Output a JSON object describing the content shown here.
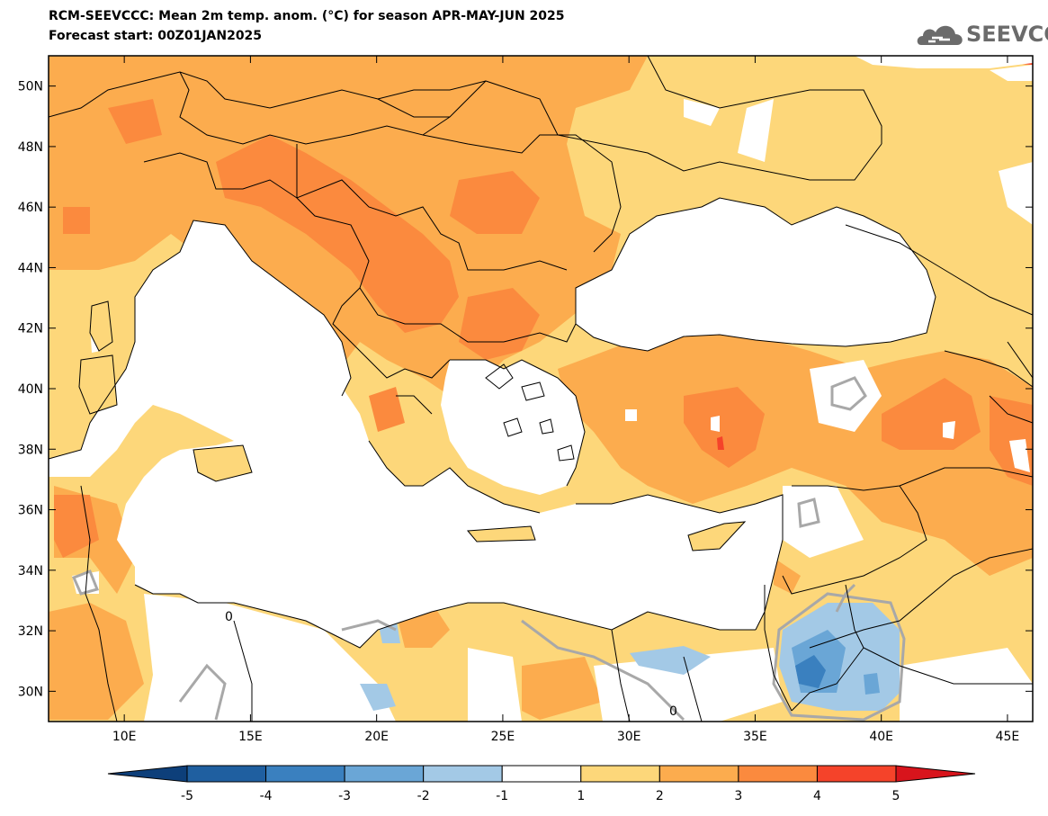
{
  "title": {
    "line1": "RCM-SEEVCCC: Mean 2m temp. anom. (°C) for season APR-MAY-JUN 2025",
    "line2": "Forecast start: 00Z01JAN2025"
  },
  "logo": {
    "text": "SEEVCCC",
    "icon": "cloud-icon"
  },
  "map": {
    "lon_range": [
      7,
      46
    ],
    "lat_range": [
      29,
      51
    ],
    "lat_ticks": [
      "50N",
      "48N",
      "46N",
      "44N",
      "42N",
      "40N",
      "38N",
      "36N",
      "34N",
      "32N",
      "30N"
    ],
    "lat_tick_values": [
      50,
      48,
      46,
      44,
      42,
      40,
      38,
      36,
      34,
      32,
      30
    ],
    "lon_ticks": [
      "10E",
      "15E",
      "20E",
      "25E",
      "30E",
      "35E",
      "40E",
      "45E"
    ],
    "lon_tick_values": [
      10,
      15,
      20,
      25,
      30,
      35,
      40,
      45
    ],
    "contour_label": "0"
  },
  "colorbar": {
    "labels": [
      "-5",
      "-4",
      "-3",
      "-2",
      "-1",
      "1",
      "2",
      "3",
      "4",
      "5"
    ],
    "colors": [
      "#1f5fa0",
      "#3a80bf",
      "#6aa6d6",
      "#a3c9e6",
      "#ffffff",
      "#fdd77a",
      "#fcac4e",
      "#fb8a3e",
      "#f5432a"
    ],
    "low_extension_color": "#0d3f7a",
    "high_extension_color": "#d8141c"
  },
  "palette": {
    "sea": "#ffffff",
    "level_1_2": "#fdd77a",
    "level_2_3": "#fcac4e",
    "level_3_4": "#fb8a3e",
    "level_4_5": "#f5432a",
    "level_m1_m2": "#a3c9e6",
    "level_m2_m3": "#6aa6d6",
    "level_m3_m4": "#3a80bf",
    "zero_contour": "#a8a8a8",
    "border": "#000000"
  }
}
